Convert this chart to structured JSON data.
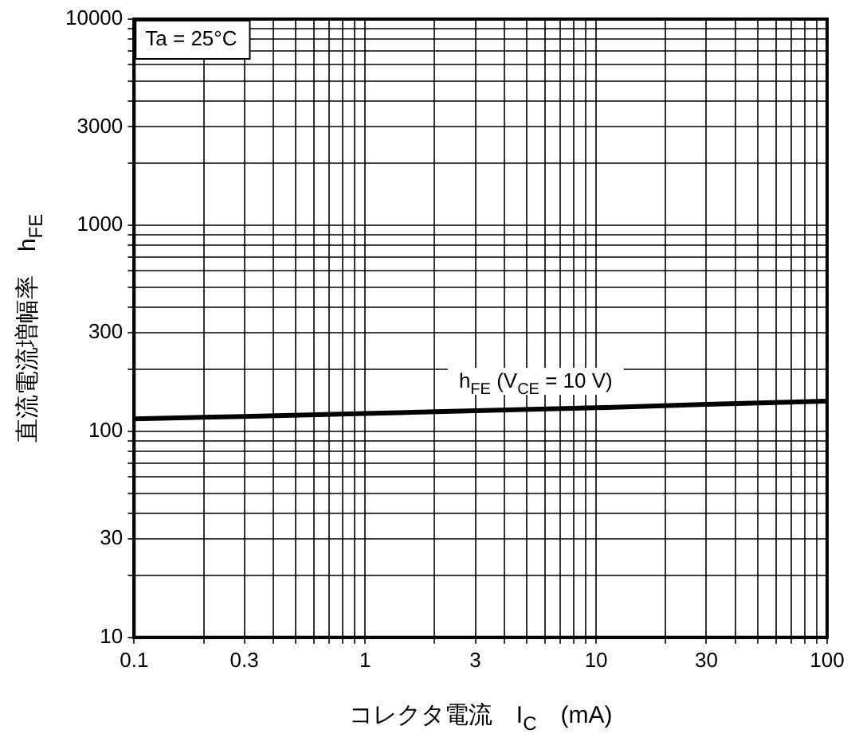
{
  "chart_data": {
    "type": "line",
    "xlabel": "コレクタ電流　I$_{C}$　(mA)",
    "ylabel": "直流電流増幅率　h$_{FE}$",
    "x": [
      0.1,
      0.3,
      1,
      3,
      10,
      30,
      100
    ],
    "series": [
      {
        "name": "h$_{FE}$ (V$_{CE}$ = 10 V)",
        "color": "#000000",
        "values": [
          115,
          118,
          122,
          126,
          130,
          135,
          140
        ]
      }
    ],
    "log": "xy",
    "xlim": [
      0.1,
      100
    ],
    "ylim": [
      10,
      10000
    ],
    "xticks": [
      {
        "value": 0.1,
        "label": "0.1"
      },
      {
        "value": 0.2,
        "label": null
      },
      {
        "value": 0.3,
        "label": "0.3"
      },
      {
        "value": 0.4,
        "label": null
      },
      {
        "value": 0.5,
        "label": null
      },
      {
        "value": 0.6,
        "label": null
      },
      {
        "value": 0.7,
        "label": null
      },
      {
        "value": 0.8,
        "label": null
      },
      {
        "value": 0.9,
        "label": null
      },
      1,
      {
        "value": 2,
        "label": null
      },
      3,
      {
        "value": 4,
        "label": null
      },
      {
        "value": 5,
        "label": null
      },
      {
        "value": 6,
        "label": null
      },
      {
        "value": 7,
        "label": null
      },
      {
        "value": 8,
        "label": null
      },
      {
        "value": 9,
        "label": null
      },
      10,
      {
        "value": 20,
        "label": null
      },
      30,
      {
        "value": 40,
        "label": null
      },
      {
        "value": 50,
        "label": null
      },
      {
        "value": 60,
        "label": null
      },
      {
        "value": 70,
        "label": null
      },
      {
        "value": 80,
        "label": null
      },
      {
        "value": 90,
        "label": null
      },
      100
    ],
    "yticks": [
      10,
      {
        "value": 20,
        "label": null
      },
      30,
      {
        "value": 40,
        "label": null
      },
      {
        "value": 50,
        "label": null
      },
      {
        "value": 60,
        "label": null
      },
      {
        "value": 70,
        "label": null
      },
      {
        "value": 80,
        "label": null
      },
      {
        "value": 90,
        "label": null
      },
      100,
      {
        "value": 200,
        "label": null
      },
      300,
      {
        "value": 400,
        "label": null
      },
      {
        "value": 500,
        "label": null
      },
      {
        "value": 600,
        "label": null
      },
      {
        "value": 700,
        "label": null
      },
      {
        "value": 800,
        "label": null
      },
      {
        "value": 900,
        "label": null
      },
      1000,
      {
        "value": 2000,
        "label": null
      },
      3000,
      {
        "value": 4000,
        "label": null
      },
      {
        "value": 5000,
        "label": null
      },
      {
        "value": 6000,
        "label": null
      },
      {
        "value": 7000,
        "label": null
      },
      {
        "value": 8000,
        "label": null
      },
      {
        "value": 9000,
        "label": null
      },
      10000
    ],
    "grid": true,
    "legend": false,
    "marker": "none",
    "line_style": "solid",
    "annotations": [
      "Ta = 25°C"
    ]
  }
}
